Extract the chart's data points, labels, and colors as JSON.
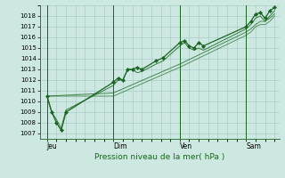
{
  "background_color": "#cce8e0",
  "grid_color": "#aacccc",
  "line_color": "#1a6620",
  "marker_color": "#1a6620",
  "ylabel_ticks": [
    1007,
    1008,
    1009,
    1010,
    1011,
    1012,
    1013,
    1014,
    1015,
    1016,
    1017,
    1018
  ],
  "ylim": [
    1006.5,
    1019.0
  ],
  "xlabel": "Pression niveau de la mer( hPa )",
  "day_labels": [
    "Jeu",
    "Dim",
    "Ven",
    "Sam"
  ],
  "day_positions": [
    0,
    56,
    112,
    168
  ],
  "xlim": [
    -6,
    196
  ],
  "series1_x": [
    0,
    4,
    8,
    12,
    16,
    56,
    60,
    64,
    68,
    72,
    76,
    80,
    92,
    98,
    112,
    116,
    120,
    124,
    128,
    132,
    168,
    172,
    176,
    180,
    184,
    188,
    192
  ],
  "series1_y": [
    1010.5,
    1009.0,
    1008.0,
    1007.3,
    1009.0,
    1011.8,
    1012.2,
    1012.0,
    1013.0,
    1013.0,
    1013.2,
    1013.0,
    1013.8,
    1014.1,
    1015.5,
    1015.7,
    1015.2,
    1015.0,
    1015.5,
    1015.2,
    1017.0,
    1017.5,
    1018.2,
    1018.3,
    1017.8,
    1018.5,
    1018.8
  ],
  "series2_x": [
    0,
    4,
    8,
    12,
    16,
    56,
    60,
    64,
    68,
    72,
    76,
    80,
    92,
    98,
    112,
    116,
    120,
    124,
    128,
    132,
    168,
    172,
    176,
    180,
    184,
    188,
    192
  ],
  "series2_y": [
    1010.5,
    1009.0,
    1008.3,
    1007.5,
    1009.2,
    1011.5,
    1012.0,
    1012.0,
    1013.0,
    1013.0,
    1012.7,
    1012.8,
    1013.5,
    1013.8,
    1015.2,
    1015.5,
    1015.0,
    1014.8,
    1015.0,
    1014.8,
    1016.8,
    1017.2,
    1017.8,
    1018.0,
    1017.5,
    1018.0,
    1018.5
  ],
  "series3_x": [
    0,
    56,
    112,
    168,
    172,
    176,
    180,
    184,
    188,
    192
  ],
  "series3_y": [
    1010.5,
    1010.8,
    1013.5,
    1016.5,
    1016.8,
    1017.2,
    1017.5,
    1017.5,
    1017.8,
    1018.2
  ],
  "series4_x": [
    0,
    56,
    112,
    168,
    172,
    176,
    180,
    184,
    188,
    192
  ],
  "series4_y": [
    1010.5,
    1010.5,
    1013.2,
    1016.2,
    1016.5,
    1017.0,
    1017.2,
    1017.2,
    1017.5,
    1018.0
  ]
}
